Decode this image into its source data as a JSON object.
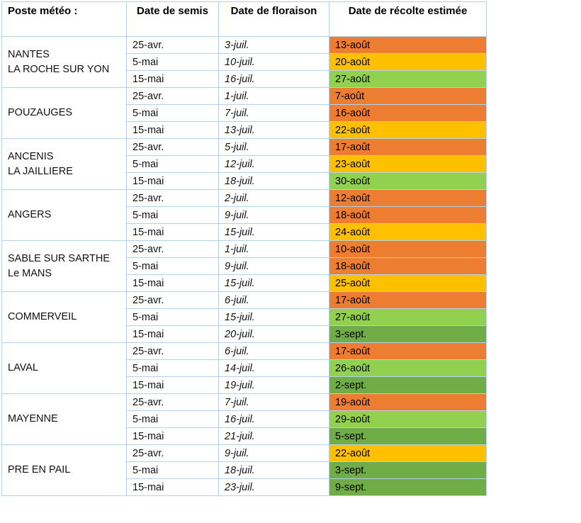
{
  "table": {
    "headers": [
      {
        "label": "Poste météo :"
      },
      {
        "label": "Date de semis"
      },
      {
        "label": "Date de floraison"
      },
      {
        "label": "Date de récolte estimée"
      }
    ],
    "colors": {
      "orange": "#ED7D31",
      "amber": "#FFC000",
      "light_green": "#92D050",
      "dark_green": "#70AD47",
      "grid_line": "#B3D1EC"
    },
    "groups": [
      {
        "station_lines": [
          "NANTES",
          "LA ROCHE SUR YON"
        ],
        "rows": [
          {
            "semis": "25-avr.",
            "floraison": "3-juil.",
            "recolte": "13-août",
            "color": "orange"
          },
          {
            "semis": "5-mai",
            "floraison": "10-juil.",
            "recolte": "20-août",
            "color": "amber"
          },
          {
            "semis": "15-mai",
            "floraison": "16-juil.",
            "recolte": "27-août",
            "color": "light_green"
          }
        ]
      },
      {
        "station_lines": [
          "POUZAUGES"
        ],
        "rows": [
          {
            "semis": "25-avr.",
            "floraison": "1-juil.",
            "recolte": "7-août",
            "color": "orange"
          },
          {
            "semis": "5-mai",
            "floraison": "7-juil.",
            "recolte": "16-août",
            "color": "orange"
          },
          {
            "semis": "15-mai",
            "floraison": "13-juil.",
            "recolte": "22-août",
            "color": "amber"
          }
        ]
      },
      {
        "station_lines": [
          "ANCENIS",
          "LA JAILLIERE"
        ],
        "rows": [
          {
            "semis": "25-avr.",
            "floraison": "5-juil.",
            "recolte": "17-août",
            "color": "orange"
          },
          {
            "semis": "5-mai",
            "floraison": "12-juil.",
            "recolte": "23-août",
            "color": "amber"
          },
          {
            "semis": "15-mai",
            "floraison": "18-juil.",
            "recolte": "30-août",
            "color": "light_green"
          }
        ]
      },
      {
        "station_lines": [
          "ANGERS"
        ],
        "rows": [
          {
            "semis": "25-avr.",
            "floraison": "2-juil.",
            "recolte": "12-août",
            "color": "orange"
          },
          {
            "semis": "5-mai",
            "floraison": "9-juil.",
            "recolte": "18-août",
            "color": "orange"
          },
          {
            "semis": "15-mai",
            "floraison": "15-juil.",
            "recolte": "24-août",
            "color": "amber"
          }
        ]
      },
      {
        "station_lines": [
          "SABLE SUR SARTHE",
          "Le MANS"
        ],
        "rows": [
          {
            "semis": "25-avr.",
            "floraison": "1-juil.",
            "recolte": "10-août",
            "color": "orange"
          },
          {
            "semis": "5-mai",
            "floraison": "9-juil.",
            "recolte": "18-août",
            "color": "orange"
          },
          {
            "semis": "15-mai",
            "floraison": "15-juil.",
            "recolte": "25-août",
            "color": "amber"
          }
        ]
      },
      {
        "station_lines": [
          "COMMERVEIL"
        ],
        "rows": [
          {
            "semis": "25-avr.",
            "floraison": "6-juil.",
            "recolte": "17-août",
            "color": "orange"
          },
          {
            "semis": "5-mai",
            "floraison": "15-juil.",
            "recolte": "27-août",
            "color": "light_green"
          },
          {
            "semis": "15-mai",
            "floraison": "20-juil.",
            "recolte": "3-sept.",
            "color": "dark_green"
          }
        ]
      },
      {
        "station_lines": [
          "LAVAL"
        ],
        "rows": [
          {
            "semis": "25-avr.",
            "floraison": "6-juil.",
            "recolte": "17-août",
            "color": "orange"
          },
          {
            "semis": "5-mai",
            "floraison": "14-juil.",
            "recolte": "26-août",
            "color": "light_green"
          },
          {
            "semis": "15-mai",
            "floraison": "19-juil.",
            "recolte": "2-sept.",
            "color": "dark_green"
          }
        ]
      },
      {
        "station_lines": [
          "MAYENNE"
        ],
        "rows": [
          {
            "semis": "25-avr.",
            "floraison": "7-juil.",
            "recolte": "19-août",
            "color": "orange"
          },
          {
            "semis": "5-mai",
            "floraison": "16-juil.",
            "recolte": "29-août",
            "color": "light_green"
          },
          {
            "semis": "15-mai",
            "floraison": "21-juil.",
            "recolte": "5-sept.",
            "color": "dark_green"
          }
        ]
      },
      {
        "station_lines": [
          "PRE EN PAIL"
        ],
        "rows": [
          {
            "semis": "25-avr.",
            "floraison": "9-juil.",
            "recolte": "22-août",
            "color": "amber"
          },
          {
            "semis": "5-mai",
            "floraison": "18-juil.",
            "recolte": "3-sept.",
            "color": "dark_green"
          },
          {
            "semis": "15-mai",
            "floraison": "23-juil.",
            "recolte": "9-sept.",
            "color": "dark_green"
          }
        ]
      }
    ]
  }
}
